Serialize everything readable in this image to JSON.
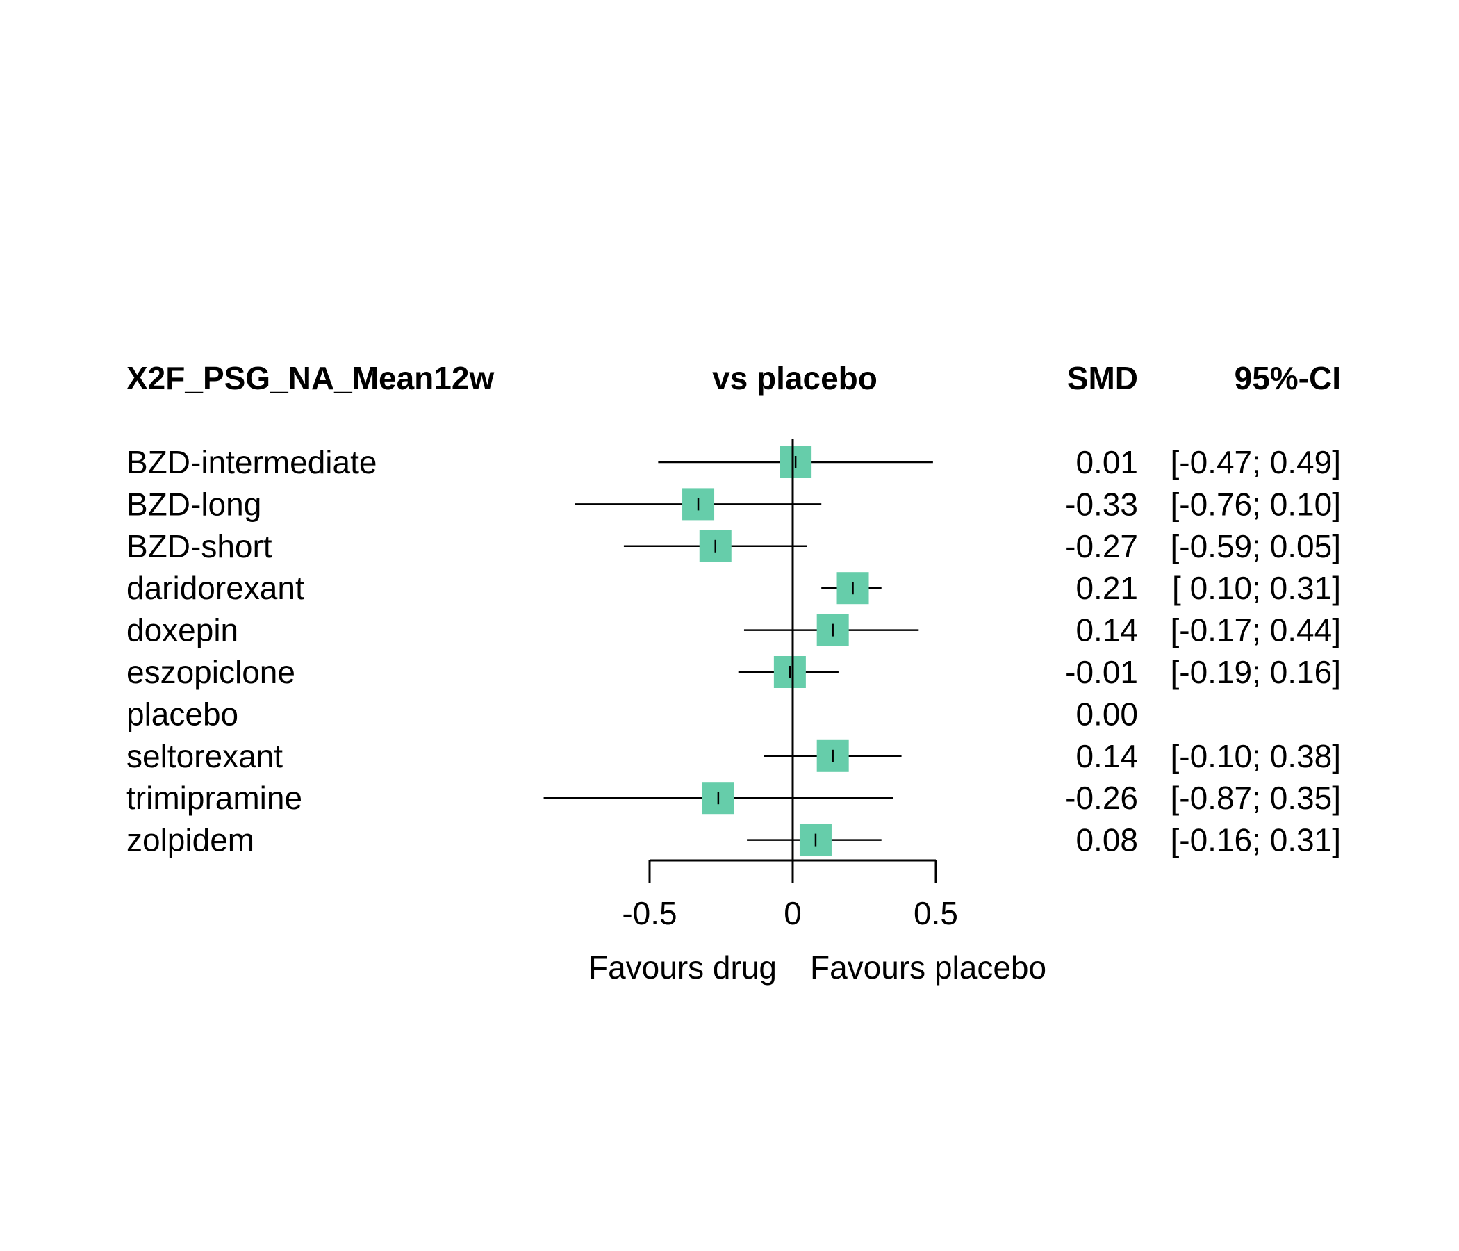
{
  "chart_data": {
    "type": "forest",
    "headers": {
      "outcome": "X2F_PSG_NA_Mean12w",
      "comparison": "vs placebo",
      "effect": "SMD",
      "ci": "95%-CI"
    },
    "rows": [
      {
        "label": "BZD-intermediate",
        "smd": 0.01,
        "lower": -0.47,
        "upper": 0.49,
        "smd_text": "0.01",
        "ci_text": "[-0.47; 0.49]"
      },
      {
        "label": "BZD-long",
        "smd": -0.33,
        "lower": -0.76,
        "upper": 0.1,
        "smd_text": "-0.33",
        "ci_text": "[-0.76; 0.10]"
      },
      {
        "label": "BZD-short",
        "smd": -0.27,
        "lower": -0.59,
        "upper": 0.05,
        "smd_text": "-0.27",
        "ci_text": "[-0.59; 0.05]"
      },
      {
        "label": "daridorexant",
        "smd": 0.21,
        "lower": 0.1,
        "upper": 0.31,
        "smd_text": "0.21",
        "ci_text": "[ 0.10; 0.31]"
      },
      {
        "label": "doxepin",
        "smd": 0.14,
        "lower": -0.17,
        "upper": 0.44,
        "smd_text": "0.14",
        "ci_text": "[-0.17; 0.44]"
      },
      {
        "label": "eszopiclone",
        "smd": -0.01,
        "lower": -0.19,
        "upper": 0.16,
        "smd_text": "-0.01",
        "ci_text": "[-0.19; 0.16]"
      },
      {
        "label": "placebo",
        "smd": 0.0,
        "lower": null,
        "upper": null,
        "smd_text": "0.00",
        "ci_text": ""
      },
      {
        "label": "seltorexant",
        "smd": 0.14,
        "lower": -0.1,
        "upper": 0.38,
        "smd_text": "0.14",
        "ci_text": "[-0.10; 0.38]"
      },
      {
        "label": "trimipramine",
        "smd": -0.26,
        "lower": -0.87,
        "upper": 0.35,
        "smd_text": "-0.26",
        "ci_text": "[-0.87; 0.35]"
      },
      {
        "label": "zolpidem",
        "smd": 0.08,
        "lower": -0.16,
        "upper": 0.31,
        "smd_text": "0.08",
        "ci_text": "[-0.16; 0.31]"
      }
    ],
    "x_ticks": [
      {
        "value": -0.5,
        "label": "-0.5"
      },
      {
        "value": 0,
        "label": "0"
      },
      {
        "value": 0.5,
        "label": "0.5"
      }
    ],
    "xlim": [
      -0.5,
      0.5
    ],
    "reference_line": 0,
    "favours_left": "Favours drug",
    "favours_right": "Favours placebo",
    "marker_color": "#66CDAA"
  }
}
